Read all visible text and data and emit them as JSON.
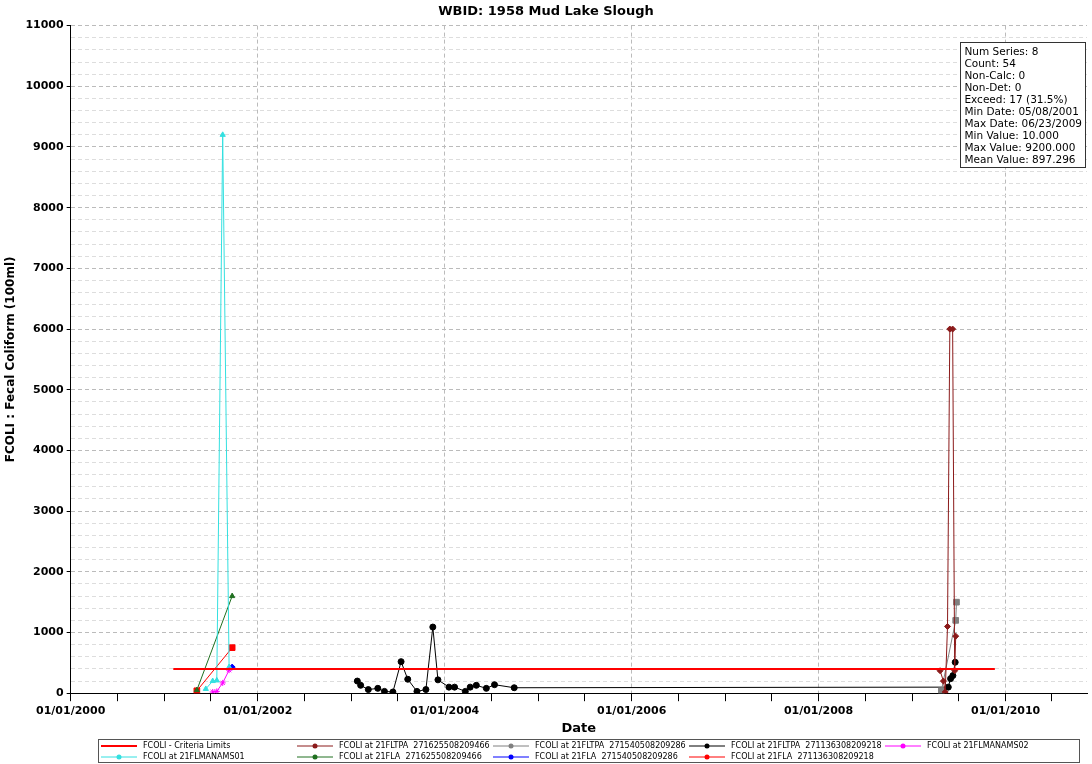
{
  "chart_data": {
    "type": "line",
    "title": "WBID: 1958 Mud Lake Slough",
    "xlabel": "Date",
    "ylabel": "FCOLI : Fecal Coliform (100ml)",
    "xlim": [
      "2000-01-01",
      "2010-11-15"
    ],
    "xticks": [
      {
        "value": "2000-01-01",
        "label": "01/01/2000"
      },
      {
        "value": "2000-07-01",
        "label": null
      },
      {
        "value": "2001-01-01",
        "label": null
      },
      {
        "value": "2001-07-01",
        "label": null
      },
      {
        "value": "2002-01-01",
        "label": "01/01/2002"
      },
      {
        "value": "2002-07-01",
        "label": null
      },
      {
        "value": "2003-01-01",
        "label": null
      },
      {
        "value": "2003-07-01",
        "label": null
      },
      {
        "value": "2004-01-01",
        "label": "01/01/2004"
      },
      {
        "value": "2004-07-01",
        "label": null
      },
      {
        "value": "2005-01-01",
        "label": null
      },
      {
        "value": "2005-07-01",
        "label": null
      },
      {
        "value": "2006-01-01",
        "label": "01/01/2006"
      },
      {
        "value": "2006-07-01",
        "label": null
      },
      {
        "value": "2007-01-01",
        "label": null
      },
      {
        "value": "2007-07-01",
        "label": null
      },
      {
        "value": "2008-01-01",
        "label": "01/01/2008"
      },
      {
        "value": "2008-07-01",
        "label": null
      },
      {
        "value": "2009-01-01",
        "label": null
      },
      {
        "value": "2009-07-01",
        "label": null
      },
      {
        "value": "2010-01-01",
        "label": "01/01/2010"
      },
      {
        "value": "2010-07-01",
        "label": null
      }
    ],
    "ylim": [
      0,
      11000
    ],
    "yticks": [
      0,
      {
        "value": 200,
        "label": null
      },
      {
        "value": 400,
        "label": null
      },
      {
        "value": 600,
        "label": null
      },
      {
        "value": 800,
        "label": null
      },
      1000,
      {
        "value": 1200,
        "label": null
      },
      {
        "value": 1400,
        "label": null
      },
      {
        "value": 1600,
        "label": null
      },
      {
        "value": 1800,
        "label": null
      },
      2000,
      {
        "value": 2200,
        "label": null
      },
      {
        "value": 2400,
        "label": null
      },
      {
        "value": 2600,
        "label": null
      },
      {
        "value": 2800,
        "label": null
      },
      3000,
      {
        "value": 3200,
        "label": null
      },
      {
        "value": 3400,
        "label": null
      },
      {
        "value": 3600,
        "label": null
      },
      {
        "value": 3800,
        "label": null
      },
      4000,
      {
        "value": 4200,
        "label": null
      },
      {
        "value": 4400,
        "label": null
      },
      {
        "value": 4600,
        "label": null
      },
      {
        "value": 4800,
        "label": null
      },
      5000,
      {
        "value": 5200,
        "label": null
      },
      {
        "value": 5400,
        "label": null
      },
      {
        "value": 5600,
        "label": null
      },
      {
        "value": 5800,
        "label": null
      },
      6000,
      {
        "value": 6200,
        "label": null
      },
      {
        "value": 6400,
        "label": null
      },
      {
        "value": 6600,
        "label": null
      },
      {
        "value": 6800,
        "label": null
      },
      7000,
      {
        "value": 7200,
        "label": null
      },
      {
        "value": 7400,
        "label": null
      },
      {
        "value": 7600,
        "label": null
      },
      {
        "value": 7800,
        "label": null
      },
      8000,
      {
        "value": 8200,
        "label": null
      },
      {
        "value": 8400,
        "label": null
      },
      {
        "value": 8600,
        "label": null
      },
      {
        "value": 8800,
        "label": null
      },
      9000,
      {
        "value": 9200,
        "label": null
      },
      {
        "value": 9400,
        "label": null
      },
      {
        "value": 9600,
        "label": null
      },
      {
        "value": 9800,
        "label": null
      },
      10000,
      {
        "value": 10200,
        "label": null
      },
      {
        "value": 10400,
        "label": null
      },
      {
        "value": 10600,
        "label": null
      },
      {
        "value": 10800,
        "label": null
      },
      11000
    ],
    "grid": true,
    "legend": "bottom",
    "annotations": [
      "Num Series: 8",
      "Count: 54",
      "Non-Calc: 0",
      "Non-Det: 0",
      "Exceed: 17 (31.5%)",
      "Min Date: 05/08/2001",
      "Max Date: 06/23/2009",
      "Min Value: 10.000",
      "Max Value: 9200.000",
      "Mean Value: 897.296"
    ],
    "series": [
      {
        "name": "FCOLI - Criteria Limits",
        "color": "#ff0000",
        "marker": "none",
        "x": [
          "2001-02-05",
          "2009-11-20"
        ],
        "values": [
          400,
          400
        ]
      },
      {
        "name": "FCOLI at 21FLTPA  271625508209466",
        "color": "#8b1a1a",
        "marker": "diamond",
        "x": [
          "2009-04-20",
          "2009-05-03",
          "2009-05-10",
          "2009-05-19",
          "2009-05-28",
          "2009-06-08",
          "2009-06-16",
          "2009-06-20"
        ],
        "values": [
          370,
          200,
          20,
          1100,
          6000,
          6000,
          370,
          940
        ]
      },
      {
        "name": "FCOLI at 21FLTPA  271540508209286",
        "color": "#808080",
        "marker": "square",
        "x": [
          "2009-04-25",
          "2009-06-20",
          "2009-06-23"
        ],
        "values": [
          40,
          1200,
          1500
        ]
      },
      {
        "name": "FCOLI at 21FLTPA  271136308209218",
        "color": "#000000",
        "marker": "circle",
        "x": [
          "2003-01-25",
          "2003-02-07",
          "2003-03-09",
          "2003-04-15",
          "2003-05-11",
          "2003-06-13",
          "2003-07-15",
          "2003-08-10",
          "2003-09-15",
          "2003-10-20",
          "2003-11-16",
          "2003-12-06",
          "2004-01-18",
          "2004-02-09",
          "2004-03-22",
          "2004-04-10",
          "2004-05-04",
          "2004-06-12",
          "2004-07-14",
          "2004-09-29",
          "2009-05-22",
          "2009-05-31",
          "2009-06-09",
          "2009-06-18"
        ],
        "values": [
          200,
          130,
          60,
          80,
          30,
          20,
          520,
          230,
          30,
          60,
          1090,
          220,
          100,
          100,
          30,
          100,
          130,
          80,
          140,
          90,
          100,
          240,
          290,
          510
        ]
      },
      {
        "name": "FCOLI at 21FLMANAMS02",
        "color": "#ff00ff",
        "marker": "cross",
        "x": [
          "2001-07-09",
          "2001-07-25",
          "2001-08-17",
          "2001-09-11"
        ],
        "values": [
          20,
          30,
          170,
          380
        ]
      },
      {
        "name": "FCOLI at 21FLMANAMS01",
        "color": "#33e0e0",
        "marker": "triangle",
        "x": [
          "2001-06-12",
          "2001-07-09",
          "2001-07-25",
          "2001-08-17",
          "2001-09-11"
        ],
        "values": [
          70,
          200,
          210,
          9200,
          430
        ]
      },
      {
        "name": "FCOLI at 21FLA  271625508209466",
        "color": "#207020",
        "marker": "triangle",
        "x": [
          "2001-05-08",
          "2001-09-23"
        ],
        "values": [
          50,
          1600
        ]
      },
      {
        "name": "FCOLI at 21FLA  271540508209286",
        "color": "#0000ff",
        "marker": "diamond",
        "x": [
          "2001-09-23"
        ],
        "values": [
          430
        ]
      },
      {
        "name": "FCOLI at 21FLA  271136308209218",
        "color": "#ff0000",
        "marker": "square",
        "x": [
          "2001-05-08",
          "2001-09-23"
        ],
        "values": [
          40,
          750
        ]
      }
    ]
  }
}
